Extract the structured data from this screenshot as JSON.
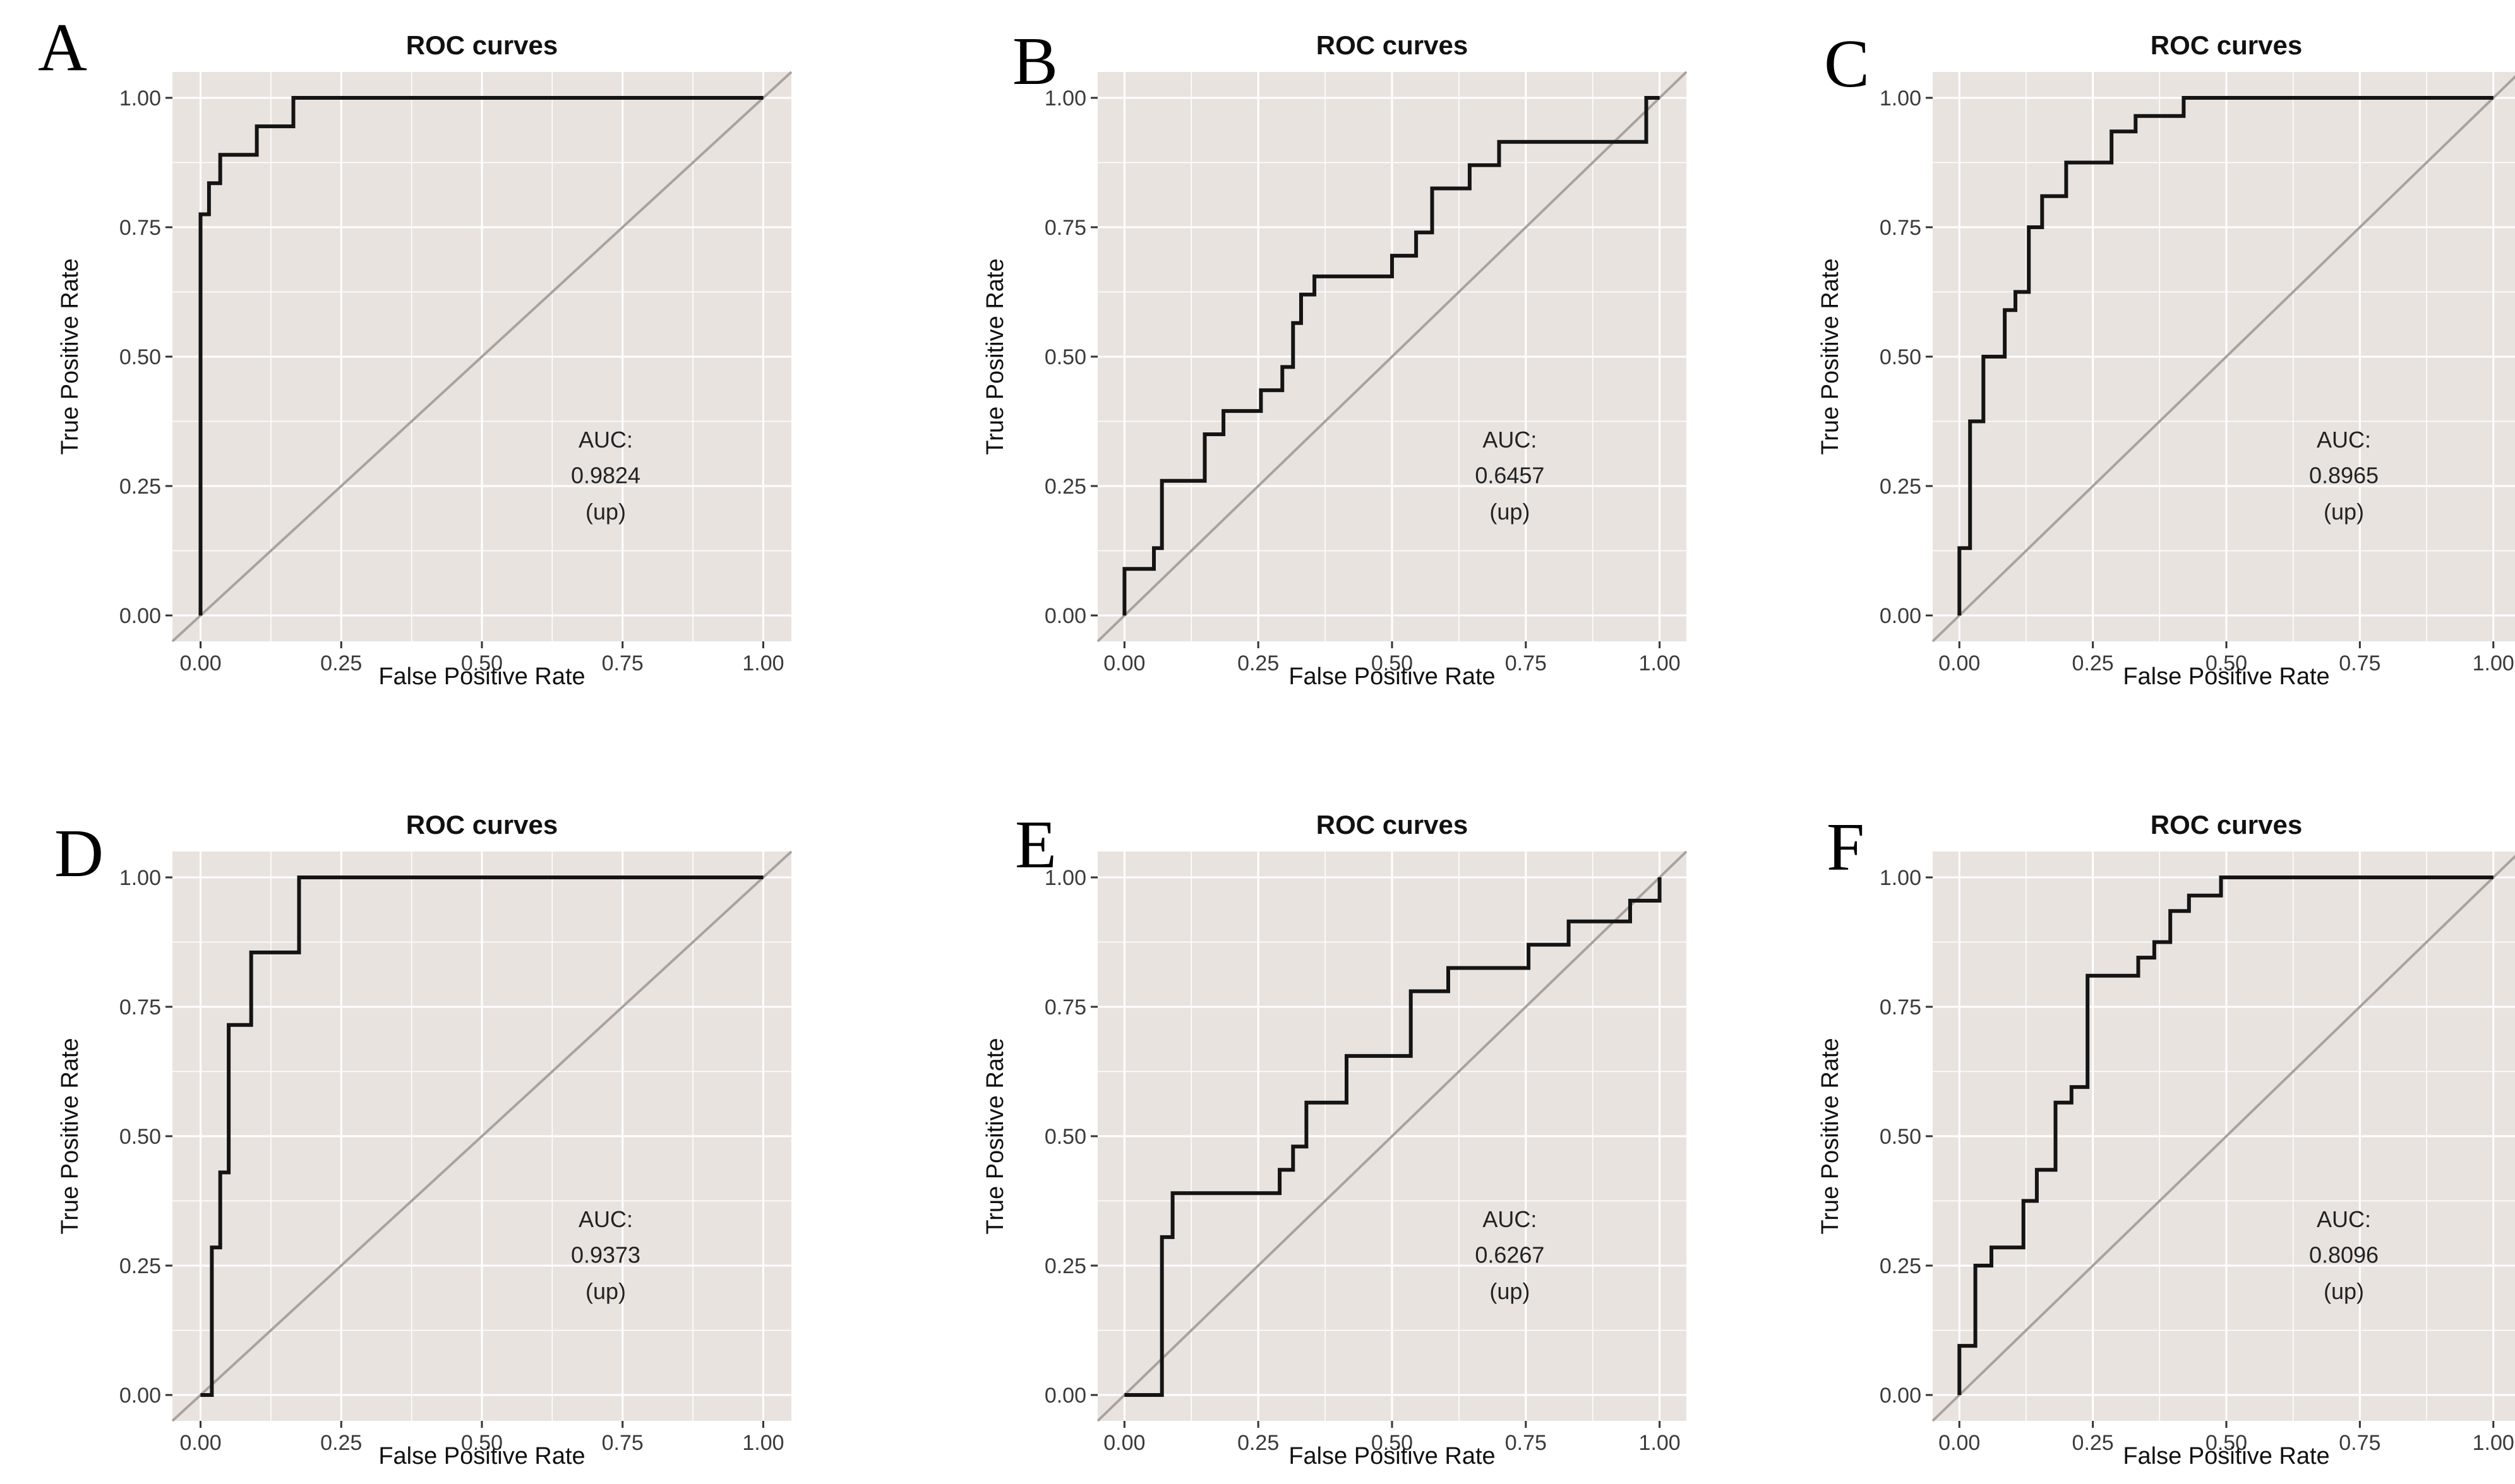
{
  "style": {
    "panel_bg": "#e9e3e0",
    "grid_color": "#ffffff",
    "curve_color": "#141414",
    "diagonal_color": "#a9a3a0",
    "title_color": "#111111",
    "tick_text_color": "#3a3a3a",
    "tick_mark_color": "#333333",
    "auc_text_color": "#222222"
  },
  "chart_data": [
    {
      "panel": "A",
      "type": "line",
      "title": "ROC curves",
      "xlabel": "False Positive Rate",
      "ylabel": "True Positive Rate",
      "x_ticks": [
        "0.00",
        "0.25",
        "0.50",
        "0.75",
        "1.00"
      ],
      "y_ticks": [
        "0.00",
        "0.25",
        "0.50",
        "0.75",
        "1.00"
      ],
      "xlim": [
        0,
        1
      ],
      "ylim": [
        0,
        1
      ],
      "grid": true,
      "diagonal_reference": true,
      "auc": {
        "label": "AUC:",
        "value": "0.9824",
        "direction": "(up)"
      },
      "roc_points": [
        [
          0,
          0
        ],
        [
          0,
          0.775
        ],
        [
          0.015,
          0.775
        ],
        [
          0.015,
          0.835
        ],
        [
          0.035,
          0.835
        ],
        [
          0.035,
          0.89
        ],
        [
          0.1,
          0.89
        ],
        [
          0.1,
          0.945
        ],
        [
          0.165,
          0.945
        ],
        [
          0.165,
          1
        ],
        [
          1,
          1
        ]
      ]
    },
    {
      "panel": "B",
      "type": "line",
      "title": "ROC curves",
      "xlabel": "False Positive Rate",
      "ylabel": "True Positive Rate",
      "x_ticks": [
        "0.00",
        "0.25",
        "0.50",
        "0.75",
        "1.00"
      ],
      "y_ticks": [
        "0.00",
        "0.25",
        "0.50",
        "0.75",
        "1.00"
      ],
      "xlim": [
        0,
        1
      ],
      "ylim": [
        0,
        1
      ],
      "grid": true,
      "diagonal_reference": true,
      "auc": {
        "label": "AUC:",
        "value": "0.6457",
        "direction": "(up)"
      },
      "roc_points": [
        [
          0,
          0
        ],
        [
          0,
          0.09
        ],
        [
          0.055,
          0.09
        ],
        [
          0.055,
          0.13
        ],
        [
          0.07,
          0.13
        ],
        [
          0.07,
          0.26
        ],
        [
          0.15,
          0.26
        ],
        [
          0.15,
          0.35
        ],
        [
          0.185,
          0.35
        ],
        [
          0.185,
          0.395
        ],
        [
          0.255,
          0.395
        ],
        [
          0.255,
          0.435
        ],
        [
          0.295,
          0.435
        ],
        [
          0.295,
          0.48
        ],
        [
          0.315,
          0.48
        ],
        [
          0.315,
          0.565
        ],
        [
          0.33,
          0.565
        ],
        [
          0.33,
          0.62
        ],
        [
          0.355,
          0.62
        ],
        [
          0.355,
          0.655
        ],
        [
          0.5,
          0.655
        ],
        [
          0.5,
          0.695
        ],
        [
          0.545,
          0.695
        ],
        [
          0.545,
          0.74
        ],
        [
          0.575,
          0.74
        ],
        [
          0.575,
          0.825
        ],
        [
          0.645,
          0.825
        ],
        [
          0.645,
          0.87
        ],
        [
          0.7,
          0.87
        ],
        [
          0.7,
          0.915
        ],
        [
          0.975,
          0.915
        ],
        [
          0.975,
          1
        ],
        [
          1,
          1
        ]
      ]
    },
    {
      "panel": "C",
      "type": "line",
      "title": "ROC curves",
      "xlabel": "False Positive Rate",
      "ylabel": "True Positive Rate",
      "x_ticks": [
        "0.00",
        "0.25",
        "0.50",
        "0.75",
        "1.00"
      ],
      "y_ticks": [
        "0.00",
        "0.25",
        "0.50",
        "0.75",
        "1.00"
      ],
      "xlim": [
        0,
        1
      ],
      "ylim": [
        0,
        1
      ],
      "grid": true,
      "diagonal_reference": true,
      "auc": {
        "label": "AUC:",
        "value": "0.8965",
        "direction": "(up)"
      },
      "roc_points": [
        [
          0,
          0
        ],
        [
          0,
          0.13
        ],
        [
          0.02,
          0.13
        ],
        [
          0.02,
          0.375
        ],
        [
          0.045,
          0.375
        ],
        [
          0.045,
          0.5
        ],
        [
          0.085,
          0.5
        ],
        [
          0.085,
          0.59
        ],
        [
          0.105,
          0.59
        ],
        [
          0.105,
          0.625
        ],
        [
          0.13,
          0.625
        ],
        [
          0.13,
          0.75
        ],
        [
          0.155,
          0.75
        ],
        [
          0.155,
          0.81
        ],
        [
          0.2,
          0.81
        ],
        [
          0.2,
          0.875
        ],
        [
          0.285,
          0.875
        ],
        [
          0.285,
          0.935
        ],
        [
          0.33,
          0.935
        ],
        [
          0.33,
          0.965
        ],
        [
          0.42,
          0.965
        ],
        [
          0.42,
          1
        ],
        [
          1,
          1
        ]
      ]
    },
    {
      "panel": "D",
      "type": "line",
      "title": "ROC curves",
      "xlabel": "False Positive Rate",
      "ylabel": "True Positive Rate",
      "x_ticks": [
        "0.00",
        "0.25",
        "0.50",
        "0.75",
        "1.00"
      ],
      "y_ticks": [
        "0.00",
        "0.25",
        "0.50",
        "0.75",
        "1.00"
      ],
      "xlim": [
        0,
        1
      ],
      "ylim": [
        0,
        1
      ],
      "grid": true,
      "diagonal_reference": true,
      "auc": {
        "label": "AUC:",
        "value": "0.9373",
        "direction": "(up)"
      },
      "roc_points": [
        [
          0,
          0
        ],
        [
          0.02,
          0
        ],
        [
          0.02,
          0.285
        ],
        [
          0.035,
          0.285
        ],
        [
          0.035,
          0.43
        ],
        [
          0.05,
          0.43
        ],
        [
          0.05,
          0.715
        ],
        [
          0.09,
          0.715
        ],
        [
          0.09,
          0.855
        ],
        [
          0.175,
          0.855
        ],
        [
          0.175,
          1
        ],
        [
          1,
          1
        ]
      ]
    },
    {
      "panel": "E",
      "type": "line",
      "title": "ROC curves",
      "xlabel": "False Positive Rate",
      "ylabel": "True Positive Rate",
      "x_ticks": [
        "0.00",
        "0.25",
        "0.50",
        "0.75",
        "1.00"
      ],
      "y_ticks": [
        "0.00",
        "0.25",
        "0.50",
        "0.75",
        "1.00"
      ],
      "xlim": [
        0,
        1
      ],
      "ylim": [
        0,
        1
      ],
      "grid": true,
      "diagonal_reference": true,
      "auc": {
        "label": "AUC:",
        "value": "0.6267",
        "direction": "(up)"
      },
      "roc_points": [
        [
          0,
          0
        ],
        [
          0.07,
          0
        ],
        [
          0.07,
          0.305
        ],
        [
          0.09,
          0.305
        ],
        [
          0.09,
          0.39
        ],
        [
          0.29,
          0.39
        ],
        [
          0.29,
          0.435
        ],
        [
          0.315,
          0.435
        ],
        [
          0.315,
          0.48
        ],
        [
          0.34,
          0.48
        ],
        [
          0.34,
          0.565
        ],
        [
          0.415,
          0.565
        ],
        [
          0.415,
          0.655
        ],
        [
          0.535,
          0.655
        ],
        [
          0.535,
          0.78
        ],
        [
          0.605,
          0.78
        ],
        [
          0.605,
          0.825
        ],
        [
          0.755,
          0.825
        ],
        [
          0.755,
          0.87
        ],
        [
          0.83,
          0.87
        ],
        [
          0.83,
          0.915
        ],
        [
          0.945,
          0.915
        ],
        [
          0.945,
          0.955
        ],
        [
          1,
          0.955
        ],
        [
          1,
          1
        ]
      ]
    },
    {
      "panel": "F",
      "type": "line",
      "title": "ROC curves",
      "xlabel": "False Positive Rate",
      "ylabel": "True Positive Rate",
      "x_ticks": [
        "0.00",
        "0.25",
        "0.50",
        "0.75",
        "1.00"
      ],
      "y_ticks": [
        "0.00",
        "0.25",
        "0.50",
        "0.75",
        "1.00"
      ],
      "xlim": [
        0,
        1
      ],
      "ylim": [
        0,
        1
      ],
      "grid": true,
      "diagonal_reference": true,
      "auc": {
        "label": "AUC:",
        "value": "0.8096",
        "direction": "(up)"
      },
      "roc_points": [
        [
          0,
          0
        ],
        [
          0,
          0.095
        ],
        [
          0.03,
          0.095
        ],
        [
          0.03,
          0.25
        ],
        [
          0.06,
          0.25
        ],
        [
          0.06,
          0.285
        ],
        [
          0.12,
          0.285
        ],
        [
          0.12,
          0.375
        ],
        [
          0.145,
          0.375
        ],
        [
          0.145,
          0.435
        ],
        [
          0.18,
          0.435
        ],
        [
          0.18,
          0.565
        ],
        [
          0.21,
          0.565
        ],
        [
          0.21,
          0.595
        ],
        [
          0.24,
          0.595
        ],
        [
          0.24,
          0.81
        ],
        [
          0.335,
          0.81
        ],
        [
          0.335,
          0.845
        ],
        [
          0.365,
          0.845
        ],
        [
          0.365,
          0.875
        ],
        [
          0.395,
          0.875
        ],
        [
          0.395,
          0.935
        ],
        [
          0.43,
          0.935
        ],
        [
          0.43,
          0.965
        ],
        [
          0.49,
          0.965
        ],
        [
          0.49,
          1
        ],
        [
          1,
          1
        ]
      ]
    }
  ]
}
